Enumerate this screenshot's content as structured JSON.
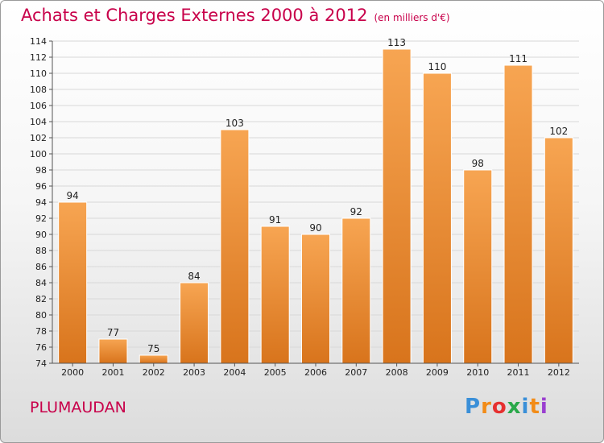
{
  "title": "Achats et Charges Externes 2000 à 2012",
  "subtitle": "(en milliers d'€)",
  "commune": "PLUMAUDAN",
  "logo": {
    "text": "Proxiti",
    "letters": [
      {
        "ch": "P",
        "color": "#3a8fd8"
      },
      {
        "ch": "r",
        "color": "#f28c18"
      },
      {
        "ch": "o",
        "color": "#e63030"
      },
      {
        "ch": "x",
        "color": "#2aa84a"
      },
      {
        "ch": "i",
        "color": "#3a8fd8"
      },
      {
        "ch": "t",
        "color": "#f28c18"
      },
      {
        "ch": "i",
        "color": "#9a3fd0"
      }
    ]
  },
  "colors": {
    "accent": "#c8004a",
    "bar_top": "#f7a552",
    "bar_bottom": "#d8741c",
    "grid": "#d8d8d8"
  },
  "chart_data": {
    "type": "bar",
    "title": "Achats et Charges Externes 2000 à 2012",
    "subtitle": "(en milliers d'€)",
    "xlabel": "",
    "ylabel": "",
    "categories": [
      "2000",
      "2001",
      "2002",
      "2003",
      "2004",
      "2005",
      "2006",
      "2007",
      "2008",
      "2009",
      "2010",
      "2011",
      "2012"
    ],
    "values": [
      94,
      77,
      75,
      84,
      103,
      91,
      90,
      92,
      113,
      110,
      98,
      111,
      102
    ],
    "ylim": [
      74,
      114
    ],
    "yticks": [
      74,
      76,
      78,
      80,
      82,
      84,
      86,
      88,
      90,
      92,
      94,
      96,
      98,
      100,
      102,
      104,
      106,
      108,
      110,
      112,
      114
    ],
    "grid": true,
    "data_labels": true
  }
}
